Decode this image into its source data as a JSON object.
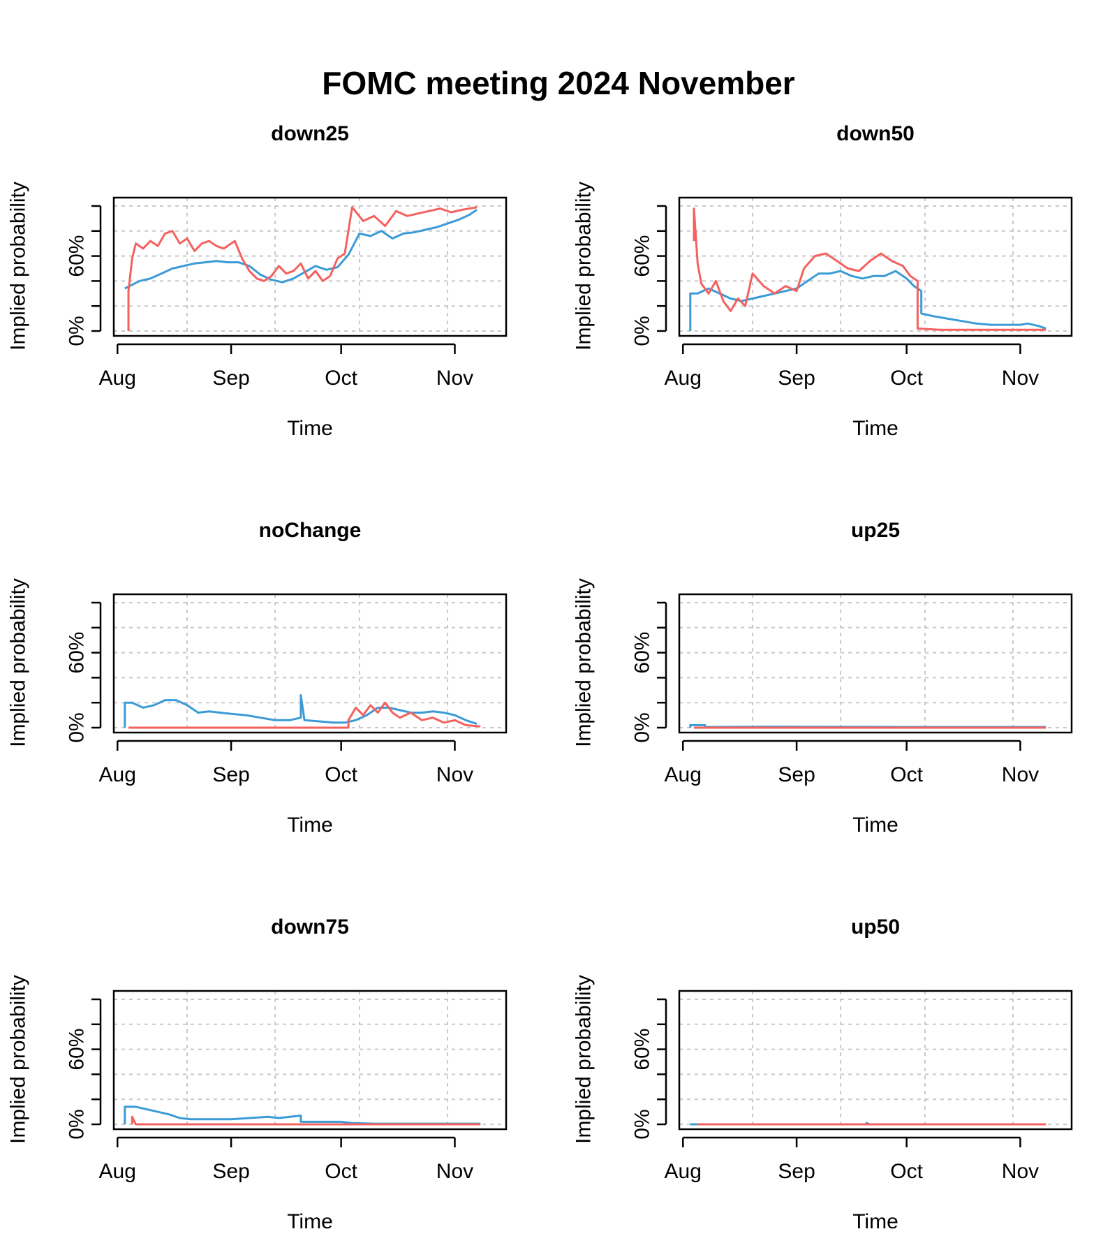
{
  "title": "FOMC meeting 2024 November",
  "colors": {
    "series_a": "#3b9bd6",
    "series_b": "#f4615f",
    "grid": "#c8c8c8"
  },
  "chart_data": [
    {
      "type": "line",
      "title": "down25",
      "xlabel": "Time",
      "ylabel": "Implied probability",
      "xlim": [
        "2024-07-31",
        "2024-11-15"
      ],
      "ylim": [
        0,
        1
      ],
      "x_ticks": [
        {
          "date": "2024-08-01",
          "label": "Aug"
        },
        {
          "date": "2024-09-01",
          "label": "Sep"
        },
        {
          "date": "2024-10-01",
          "label": "Oct"
        },
        {
          "date": "2024-11-01",
          "label": "Nov"
        }
      ],
      "y_ticks": [
        {
          "value": 0,
          "label": "0%"
        },
        {
          "value": 0.2,
          "label": ""
        },
        {
          "value": 0.4,
          "label": ""
        },
        {
          "value": 0.6,
          "label": "60%"
        },
        {
          "value": 0.8,
          "label": ""
        },
        {
          "value": 1.0,
          "label": ""
        }
      ],
      "grid": true,
      "series": [
        {
          "color": "#3b9bd6",
          "x": [
            "2024-08-03",
            "2024-08-05",
            "2024-08-07",
            "2024-08-10",
            "2024-08-13",
            "2024-08-16",
            "2024-08-19",
            "2024-08-22",
            "2024-08-25",
            "2024-08-28",
            "2024-08-31",
            "2024-09-03",
            "2024-09-06",
            "2024-09-09",
            "2024-09-12",
            "2024-09-15",
            "2024-09-18",
            "2024-09-21",
            "2024-09-24",
            "2024-09-27",
            "2024-09-30",
            "2024-10-03",
            "2024-10-06",
            "2024-10-09",
            "2024-10-12",
            "2024-10-15",
            "2024-10-18",
            "2024-10-21",
            "2024-10-24",
            "2024-10-27",
            "2024-10-30",
            "2024-11-02",
            "2024-11-05",
            "2024-11-07"
          ],
          "y": [
            0.34,
            0.37,
            0.4,
            0.42,
            0.46,
            0.5,
            0.52,
            0.54,
            0.55,
            0.56,
            0.55,
            0.55,
            0.52,
            0.45,
            0.41,
            0.39,
            0.42,
            0.47,
            0.52,
            0.49,
            0.51,
            0.61,
            0.78,
            0.76,
            0.8,
            0.74,
            0.78,
            0.79,
            0.81,
            0.83,
            0.86,
            0.89,
            0.93,
            0.97
          ]
        },
        {
          "color": "#f4615f",
          "x": [
            "2024-08-04",
            "2024-08-04",
            "2024-08-05",
            "2024-08-06",
            "2024-08-08",
            "2024-08-10",
            "2024-08-12",
            "2024-08-14",
            "2024-08-16",
            "2024-08-18",
            "2024-08-20",
            "2024-08-22",
            "2024-08-24",
            "2024-08-26",
            "2024-08-28",
            "2024-08-30",
            "2024-09-02",
            "2024-09-04",
            "2024-09-06",
            "2024-09-08",
            "2024-09-10",
            "2024-09-12",
            "2024-09-14",
            "2024-09-16",
            "2024-09-18",
            "2024-09-20",
            "2024-09-22",
            "2024-09-24",
            "2024-09-26",
            "2024-09-28",
            "2024-09-30",
            "2024-10-02",
            "2024-10-04",
            "2024-10-07",
            "2024-10-10",
            "2024-10-13",
            "2024-10-16",
            "2024-10-19",
            "2024-10-22",
            "2024-10-25",
            "2024-10-28",
            "2024-10-31",
            "2024-11-03",
            "2024-11-07"
          ],
          "y": [
            0.0,
            0.32,
            0.58,
            0.7,
            0.66,
            0.72,
            0.68,
            0.78,
            0.8,
            0.7,
            0.74,
            0.64,
            0.7,
            0.72,
            0.68,
            0.66,
            0.72,
            0.58,
            0.48,
            0.42,
            0.4,
            0.44,
            0.52,
            0.46,
            0.48,
            0.54,
            0.42,
            0.48,
            0.4,
            0.44,
            0.58,
            0.62,
            0.99,
            0.88,
            0.92,
            0.84,
            0.96,
            0.92,
            0.94,
            0.96,
            0.98,
            0.95,
            0.97,
            0.99
          ]
        }
      ]
    },
    {
      "type": "line",
      "title": "down50",
      "xlabel": "Time",
      "ylabel": "Implied probability",
      "xlim": [
        "2024-07-31",
        "2024-11-15"
      ],
      "ylim": [
        0,
        1
      ],
      "x_ticks": [
        {
          "date": "2024-08-01",
          "label": "Aug"
        },
        {
          "date": "2024-09-01",
          "label": "Sep"
        },
        {
          "date": "2024-10-01",
          "label": "Oct"
        },
        {
          "date": "2024-11-01",
          "label": "Nov"
        }
      ],
      "y_ticks": [
        {
          "value": 0,
          "label": "0%"
        },
        {
          "value": 0.2,
          "label": ""
        },
        {
          "value": 0.4,
          "label": ""
        },
        {
          "value": 0.6,
          "label": "60%"
        },
        {
          "value": 0.8,
          "label": ""
        },
        {
          "value": 1.0,
          "label": ""
        }
      ],
      "grid": true,
      "series": [
        {
          "color": "#3b9bd6",
          "x": [
            "2024-08-03",
            "2024-08-03",
            "2024-08-05",
            "2024-08-08",
            "2024-08-11",
            "2024-08-14",
            "2024-08-17",
            "2024-08-20",
            "2024-08-23",
            "2024-08-26",
            "2024-08-29",
            "2024-09-01",
            "2024-09-04",
            "2024-09-07",
            "2024-09-10",
            "2024-09-13",
            "2024-09-16",
            "2024-09-19",
            "2024-09-22",
            "2024-09-25",
            "2024-09-28",
            "2024-10-01",
            "2024-10-03",
            "2024-10-05",
            "2024-10-05",
            "2024-10-08",
            "2024-10-12",
            "2024-10-16",
            "2024-10-20",
            "2024-10-24",
            "2024-10-28",
            "2024-11-01",
            "2024-11-03",
            "2024-11-06",
            "2024-11-08"
          ],
          "y": [
            0.0,
            0.3,
            0.3,
            0.34,
            0.3,
            0.26,
            0.24,
            0.26,
            0.28,
            0.3,
            0.32,
            0.34,
            0.4,
            0.46,
            0.46,
            0.48,
            0.44,
            0.42,
            0.44,
            0.44,
            0.48,
            0.42,
            0.36,
            0.32,
            0.14,
            0.12,
            0.1,
            0.08,
            0.06,
            0.05,
            0.05,
            0.05,
            0.06,
            0.04,
            0.02
          ]
        },
        {
          "color": "#f4615f",
          "x": [
            "2024-08-04",
            "2024-08-04",
            "2024-08-05",
            "2024-08-06",
            "2024-08-08",
            "2024-08-10",
            "2024-08-12",
            "2024-08-14",
            "2024-08-16",
            "2024-08-18",
            "2024-08-20",
            "2024-08-23",
            "2024-08-26",
            "2024-08-29",
            "2024-09-01",
            "2024-09-03",
            "2024-09-06",
            "2024-09-09",
            "2024-09-12",
            "2024-09-15",
            "2024-09-18",
            "2024-09-21",
            "2024-09-24",
            "2024-09-27",
            "2024-09-30",
            "2024-10-02",
            "2024-10-04",
            "2024-10-04",
            "2024-10-10",
            "2024-10-20",
            "2024-10-30",
            "2024-11-08"
          ],
          "y": [
            0.72,
            0.98,
            0.54,
            0.38,
            0.3,
            0.4,
            0.24,
            0.16,
            0.26,
            0.2,
            0.46,
            0.36,
            0.3,
            0.36,
            0.32,
            0.5,
            0.6,
            0.62,
            0.56,
            0.5,
            0.48,
            0.56,
            0.62,
            0.56,
            0.52,
            0.44,
            0.4,
            0.02,
            0.01,
            0.01,
            0.01,
            0.01
          ]
        }
      ]
    },
    {
      "type": "line",
      "title": "noChange",
      "xlabel": "Time",
      "ylabel": "Implied probability",
      "xlim": [
        "2024-07-31",
        "2024-11-15"
      ],
      "ylim": [
        0,
        1
      ],
      "x_ticks": [
        {
          "date": "2024-08-01",
          "label": "Aug"
        },
        {
          "date": "2024-09-01",
          "label": "Sep"
        },
        {
          "date": "2024-10-01",
          "label": "Oct"
        },
        {
          "date": "2024-11-01",
          "label": "Nov"
        }
      ],
      "y_ticks": [
        {
          "value": 0,
          "label": "0%"
        },
        {
          "value": 0.2,
          "label": ""
        },
        {
          "value": 0.4,
          "label": ""
        },
        {
          "value": 0.6,
          "label": "60%"
        },
        {
          "value": 0.8,
          "label": ""
        },
        {
          "value": 1.0,
          "label": ""
        }
      ],
      "grid": true,
      "series": [
        {
          "color": "#3b9bd6",
          "x": [
            "2024-08-03",
            "2024-08-03",
            "2024-08-05",
            "2024-08-08",
            "2024-08-11",
            "2024-08-14",
            "2024-08-17",
            "2024-08-20",
            "2024-08-23",
            "2024-08-26",
            "2024-08-29",
            "2024-09-01",
            "2024-09-05",
            "2024-09-09",
            "2024-09-13",
            "2024-09-17",
            "2024-09-20",
            "2024-09-20",
            "2024-09-21",
            "2024-09-25",
            "2024-09-29",
            "2024-10-02",
            "2024-10-05",
            "2024-10-08",
            "2024-10-11",
            "2024-10-14",
            "2024-10-17",
            "2024-10-20",
            "2024-10-23",
            "2024-10-26",
            "2024-10-29",
            "2024-11-01",
            "2024-11-04",
            "2024-11-07"
          ],
          "y": [
            0.0,
            0.2,
            0.2,
            0.16,
            0.18,
            0.22,
            0.22,
            0.18,
            0.12,
            0.13,
            0.12,
            0.11,
            0.1,
            0.08,
            0.06,
            0.06,
            0.08,
            0.26,
            0.06,
            0.05,
            0.04,
            0.04,
            0.06,
            0.1,
            0.16,
            0.16,
            0.14,
            0.12,
            0.12,
            0.13,
            0.12,
            0.1,
            0.06,
            0.03
          ]
        },
        {
          "color": "#f4615f",
          "x": [
            "2024-08-04",
            "2024-10-03",
            "2024-10-03",
            "2024-10-05",
            "2024-10-07",
            "2024-10-09",
            "2024-10-11",
            "2024-10-13",
            "2024-10-15",
            "2024-10-17",
            "2024-10-20",
            "2024-10-23",
            "2024-10-26",
            "2024-10-29",
            "2024-11-01",
            "2024-11-04",
            "2024-11-08"
          ],
          "y": [
            0.0,
            0.0,
            0.06,
            0.16,
            0.1,
            0.18,
            0.12,
            0.2,
            0.12,
            0.08,
            0.12,
            0.06,
            0.08,
            0.04,
            0.06,
            0.02,
            0.01
          ]
        }
      ]
    },
    {
      "type": "line",
      "title": "up25",
      "xlabel": "Time",
      "ylabel": "Implied probability",
      "xlim": [
        "2024-07-31",
        "2024-11-15"
      ],
      "ylim": [
        0,
        1
      ],
      "x_ticks": [
        {
          "date": "2024-08-01",
          "label": "Aug"
        },
        {
          "date": "2024-09-01",
          "label": "Sep"
        },
        {
          "date": "2024-10-01",
          "label": "Oct"
        },
        {
          "date": "2024-11-01",
          "label": "Nov"
        }
      ],
      "y_ticks": [
        {
          "value": 0,
          "label": "0%"
        },
        {
          "value": 0.2,
          "label": ""
        },
        {
          "value": 0.4,
          "label": ""
        },
        {
          "value": 0.6,
          "label": "60%"
        },
        {
          "value": 0.8,
          "label": ""
        },
        {
          "value": 1.0,
          "label": ""
        }
      ],
      "grid": true,
      "series": [
        {
          "color": "#3b9bd6",
          "x": [
            "2024-08-03",
            "2024-08-03",
            "2024-08-07",
            "2024-08-07",
            "2024-08-25",
            "2024-09-10",
            "2024-10-01",
            "2024-10-20",
            "2024-11-08"
          ],
          "y": [
            0.0,
            0.02,
            0.02,
            0.005,
            0.008,
            0.006,
            0.005,
            0.005,
            0.005
          ]
        },
        {
          "color": "#f4615f",
          "x": [
            "2024-08-04",
            "2024-11-08"
          ],
          "y": [
            0.0,
            0.0
          ]
        }
      ]
    },
    {
      "type": "line",
      "title": "down75",
      "xlabel": "Time",
      "ylabel": "Implied probability",
      "xlim": [
        "2024-07-31",
        "2024-11-15"
      ],
      "ylim": [
        0,
        1
      ],
      "x_ticks": [
        {
          "date": "2024-08-01",
          "label": "Aug"
        },
        {
          "date": "2024-09-01",
          "label": "Sep"
        },
        {
          "date": "2024-10-01",
          "label": "Oct"
        },
        {
          "date": "2024-11-01",
          "label": "Nov"
        }
      ],
      "y_ticks": [
        {
          "value": 0,
          "label": "0%"
        },
        {
          "value": 0.2,
          "label": ""
        },
        {
          "value": 0.4,
          "label": ""
        },
        {
          "value": 0.6,
          "label": "60%"
        },
        {
          "value": 0.8,
          "label": ""
        },
        {
          "value": 1.0,
          "label": ""
        }
      ],
      "grid": true,
      "series": [
        {
          "color": "#3b9bd6",
          "x": [
            "2024-08-03",
            "2024-08-03",
            "2024-08-06",
            "2024-08-09",
            "2024-08-12",
            "2024-08-15",
            "2024-08-18",
            "2024-08-21",
            "2024-08-26",
            "2024-09-01",
            "2024-09-06",
            "2024-09-11",
            "2024-09-14",
            "2024-09-17",
            "2024-09-20",
            "2024-09-20",
            "2024-09-25",
            "2024-10-01",
            "2024-10-04",
            "2024-10-10",
            "2024-10-20",
            "2024-11-08"
          ],
          "y": [
            0.0,
            0.14,
            0.14,
            0.12,
            0.1,
            0.08,
            0.05,
            0.04,
            0.04,
            0.04,
            0.05,
            0.06,
            0.05,
            0.06,
            0.07,
            0.02,
            0.02,
            0.02,
            0.01,
            0.005,
            0.005,
            0.005
          ]
        },
        {
          "color": "#f4615f",
          "x": [
            "2024-08-05",
            "2024-08-05",
            "2024-08-06",
            "2024-11-08"
          ],
          "y": [
            0.0,
            0.06,
            0.0,
            0.0
          ]
        }
      ]
    },
    {
      "type": "line",
      "title": "up50",
      "xlabel": "Time",
      "ylabel": "Implied probability",
      "xlim": [
        "2024-07-31",
        "2024-11-15"
      ],
      "ylim": [
        0,
        1
      ],
      "x_ticks": [
        {
          "date": "2024-08-01",
          "label": "Aug"
        },
        {
          "date": "2024-09-01",
          "label": "Sep"
        },
        {
          "date": "2024-10-01",
          "label": "Oct"
        },
        {
          "date": "2024-11-01",
          "label": "Nov"
        }
      ],
      "y_ticks": [
        {
          "value": 0,
          "label": "0%"
        },
        {
          "value": 0.2,
          "label": ""
        },
        {
          "value": 0.4,
          "label": ""
        },
        {
          "value": 0.6,
          "label": "60%"
        },
        {
          "value": 0.8,
          "label": ""
        },
        {
          "value": 1.0,
          "label": ""
        }
      ],
      "grid": true,
      "series": [
        {
          "color": "#3b9bd6",
          "x": [
            "2024-08-03",
            "2024-09-20",
            "2024-09-20",
            "2024-09-21",
            "2024-11-08"
          ],
          "y": [
            0.0,
            0.0,
            0.01,
            0.0,
            0.0
          ]
        },
        {
          "color": "#f4615f",
          "x": [
            "2024-08-05",
            "2024-11-08"
          ],
          "y": [
            0.0,
            0.0
          ]
        }
      ]
    }
  ]
}
